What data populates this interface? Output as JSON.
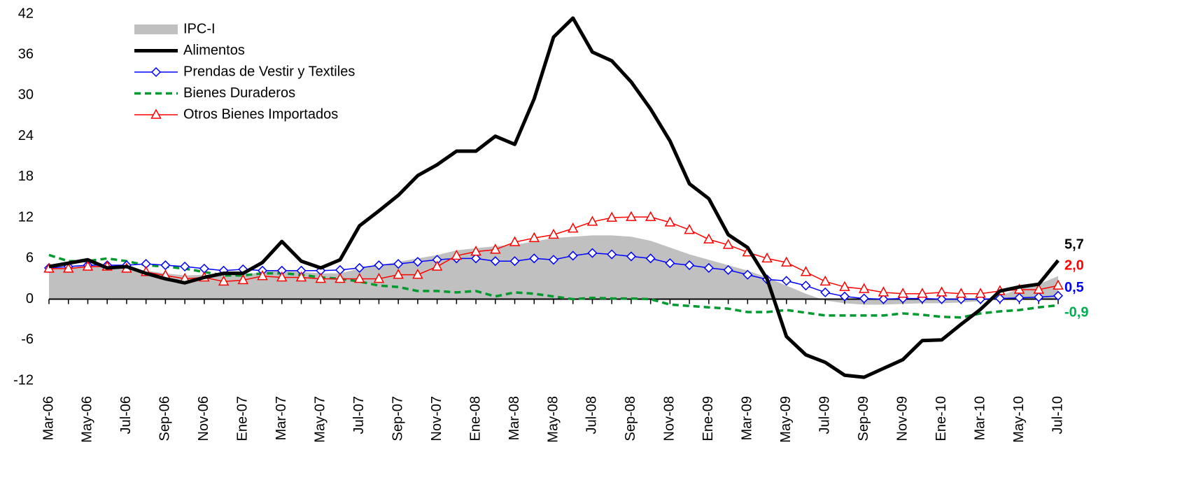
{
  "chart_data": {
    "type": "line",
    "categories": [
      "Mar-06",
      null,
      "May-06",
      null,
      "Jul-06",
      null,
      "Sep-06",
      null,
      "Nov-06",
      null,
      "Ene-07",
      null,
      "Mar-07",
      null,
      "May-07",
      null,
      "Jul-07",
      null,
      "Sep-07",
      null,
      "Nov-07",
      null,
      "Ene-08",
      null,
      "Mar-08",
      null,
      "May-08",
      null,
      "Jul-08",
      null,
      "Sep-08",
      null,
      "Nov-08",
      null,
      "Ene-09",
      null,
      "Mar-09",
      null,
      "May-09",
      null,
      "Jul-09",
      null,
      "Sep-09",
      null,
      "Nov-09",
      null,
      "Ene-10",
      null,
      "Mar-10",
      null,
      "May-10",
      null,
      "Jul-10"
    ],
    "ylim": [
      -12,
      42
    ],
    "yticks": [
      -12,
      -6,
      0,
      6,
      12,
      18,
      24,
      30,
      36,
      42
    ],
    "grid": false,
    "legend": "upper-left",
    "series": [
      {
        "name": "IPC-I",
        "kind": "area",
        "color": "#c0c0c0",
        "values": [
          4.5,
          4.6,
          5.0,
          4.8,
          4.6,
          4.2,
          3.8,
          3.5,
          3.6,
          3.5,
          3.6,
          4.0,
          4.4,
          4.0,
          3.8,
          3.8,
          4.5,
          5.0,
          5.5,
          6.0,
          6.5,
          7.2,
          7.5,
          7.8,
          8.0,
          8.5,
          9.0,
          9.2,
          9.4,
          9.4,
          9.2,
          8.6,
          7.6,
          6.6,
          5.8,
          5.0,
          4.2,
          3.2,
          2.0,
          0.8,
          -0.2,
          -0.6,
          -0.8,
          -0.8,
          -0.7,
          -0.6,
          -0.6,
          -0.5,
          -0.3,
          0.5,
          1.5,
          2.2,
          3.4
        ]
      },
      {
        "name": "Alimentos",
        "kind": "line",
        "color": "#000000",
        "width": 5,
        "values": [
          4.8,
          5.3,
          5.8,
          4.6,
          4.8,
          3.8,
          3.0,
          2.4,
          3.2,
          3.8,
          3.8,
          5.4,
          8.5,
          5.6,
          4.6,
          5.8,
          10.8,
          13.0,
          15.3,
          18.2,
          19.8,
          21.8,
          21.8,
          24.0,
          22.8,
          29.5,
          38.6,
          41.4,
          36.4,
          35.1,
          32.0,
          28.0,
          23.3,
          17.0,
          14.8,
          9.5,
          7.6,
          3.0,
          -5.5,
          -8.2,
          -9.3,
          -11.2,
          -11.5,
          -10.2,
          -8.9,
          -6.1,
          -6.0,
          -3.7,
          -1.5,
          1.2,
          1.8,
          2.2,
          5.7
        ],
        "value_labels": [
          null,
          null,
          null,
          null,
          null,
          null,
          null,
          null,
          null,
          null,
          null,
          null,
          null,
          null,
          null,
          null,
          null,
          null,
          null,
          null,
          null,
          null,
          null,
          null,
          null,
          null,
          null,
          null,
          null,
          null,
          null,
          null,
          null,
          null,
          null,
          null,
          null,
          null,
          null,
          null,
          null,
          null,
          null,
          null,
          null,
          null,
          null,
          null,
          null,
          null,
          null,
          null,
          "5,7"
        ]
      },
      {
        "name": "Prendas de Vestir y Textiles",
        "kind": "line",
        "color": "#0000ff",
        "width": 1.5,
        "marker": "diamond",
        "values": [
          4.6,
          4.8,
          5.0,
          5.0,
          5.0,
          5.2,
          5.0,
          4.8,
          4.5,
          4.2,
          4.4,
          4.2,
          4.2,
          4.2,
          4.2,
          4.3,
          4.6,
          5.0,
          5.2,
          5.5,
          5.8,
          6.0,
          6.0,
          5.6,
          5.6,
          6.0,
          5.8,
          6.4,
          6.8,
          6.6,
          6.3,
          6.0,
          5.3,
          5.0,
          4.6,
          4.3,
          3.6,
          2.9,
          2.7,
          2.0,
          1.0,
          0.4,
          0.1,
          0.0,
          0.1,
          0.1,
          0.0,
          0.0,
          0.0,
          0.1,
          0.2,
          0.3,
          0.5
        ],
        "value_labels": [
          null,
          null,
          null,
          null,
          null,
          null,
          null,
          null,
          null,
          null,
          null,
          null,
          null,
          null,
          null,
          null,
          null,
          null,
          null,
          null,
          null,
          null,
          null,
          null,
          null,
          null,
          null,
          null,
          null,
          null,
          null,
          null,
          null,
          null,
          null,
          null,
          null,
          null,
          null,
          null,
          null,
          null,
          null,
          null,
          null,
          null,
          null,
          null,
          null,
          null,
          null,
          null,
          "0,5"
        ]
      },
      {
        "name": "Bienes Duraderos",
        "kind": "line",
        "color": "#009a2e",
        "width": 3.5,
        "dashed": true,
        "values": [
          6.5,
          5.6,
          5.6,
          6.0,
          5.6,
          5.0,
          4.8,
          4.5,
          4.0,
          3.5,
          3.5,
          3.8,
          3.8,
          3.6,
          3.2,
          3.0,
          2.6,
          2.0,
          1.8,
          1.2,
          1.2,
          1.0,
          1.2,
          0.4,
          1.0,
          0.8,
          0.4,
          0.0,
          0.2,
          0.1,
          0.1,
          0.0,
          -0.8,
          -1.0,
          -1.2,
          -1.4,
          -1.9,
          -1.9,
          -1.6,
          -2.0,
          -2.4,
          -2.4,
          -2.4,
          -2.4,
          -2.1,
          -2.3,
          -2.6,
          -2.7,
          -2.1,
          -1.8,
          -1.6,
          -1.2,
          -0.9
        ],
        "value_labels": [
          null,
          null,
          null,
          null,
          null,
          null,
          null,
          null,
          null,
          null,
          null,
          null,
          null,
          null,
          null,
          null,
          null,
          null,
          null,
          null,
          null,
          null,
          null,
          null,
          null,
          null,
          null,
          null,
          null,
          null,
          null,
          null,
          null,
          null,
          null,
          null,
          null,
          null,
          null,
          null,
          null,
          null,
          null,
          null,
          null,
          null,
          null,
          null,
          null,
          null,
          null,
          null,
          "-0,9"
        ]
      },
      {
        "name": "Otros Bienes Importados",
        "kind": "line",
        "color": "#ff0000",
        "width": 1.5,
        "marker": "triangle",
        "values": [
          4.5,
          4.5,
          4.8,
          4.8,
          4.5,
          4.0,
          3.5,
          3.0,
          3.2,
          2.6,
          2.8,
          3.4,
          3.2,
          3.2,
          3.0,
          3.0,
          3.0,
          3.0,
          3.6,
          3.6,
          4.8,
          6.4,
          7.0,
          7.3,
          8.4,
          9.0,
          9.5,
          10.4,
          11.4,
          12.0,
          12.1,
          12.1,
          11.3,
          10.2,
          8.8,
          8.0,
          6.9,
          6.0,
          5.4,
          4.0,
          2.6,
          1.8,
          1.5,
          1.0,
          0.8,
          0.8,
          1.0,
          0.8,
          0.8,
          1.2,
          1.4,
          1.4,
          2.0
        ],
        "value_labels": [
          null,
          null,
          null,
          null,
          null,
          null,
          null,
          null,
          null,
          null,
          null,
          null,
          null,
          null,
          null,
          null,
          null,
          null,
          null,
          null,
          null,
          null,
          null,
          null,
          null,
          null,
          null,
          null,
          null,
          null,
          null,
          null,
          null,
          null,
          null,
          null,
          null,
          null,
          null,
          null,
          null,
          null,
          null,
          null,
          null,
          null,
          null,
          null,
          null,
          null,
          null,
          null,
          "2,0"
        ]
      }
    ]
  }
}
